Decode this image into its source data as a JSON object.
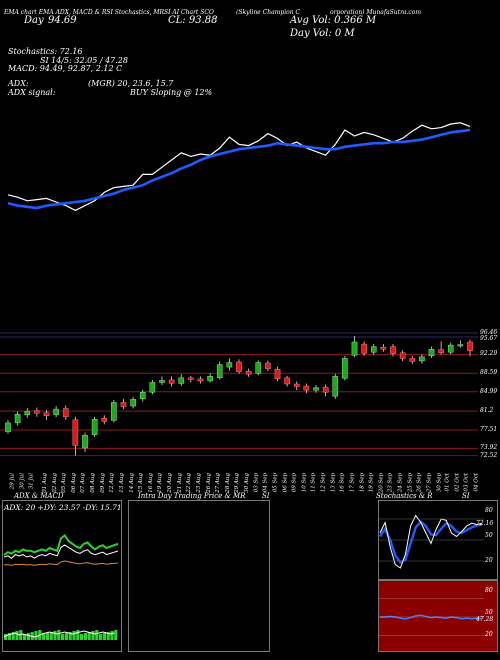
{
  "header": {
    "line1_left": "(Skyline Champion C",
    "line1_right": "orporation) MunafaSutra.com",
    "source_labels": [
      "EMA chart",
      "EMA",
      "ADX, MACD & RSI",
      "Stochastics, MRSI",
      "AI Chart SCO"
    ],
    "price_snippet": "CL: 93.88",
    "day_label": "Day",
    "day_value": "94.69",
    "avg_vol": "Avg Vol: 0.366  M",
    "day_vol": "Day Vol: 0  M",
    "stochastics": "Stochastics: 72.16",
    "si": "SI 14/5: 32.05 / 47.28",
    "macd": "MACD: 94.49, 92.87, 2.12  C",
    "adx_label": "ADX:",
    "mrsi": "(MGR) 20, 23.6, 15.7",
    "adx_signal": "ADX  signal:",
    "buy_signal": "BUY Sloping @ 12%"
  },
  "price_levels": [
    "96.46",
    "95.67",
    "92.29",
    "88.59",
    "84.99",
    "81.2",
    "77.51",
    "73.92",
    "72.52"
  ],
  "date_labels": [
    "29 Jul",
    "30 Jul",
    "31 Jul",
    "01 Aug",
    "02 Aug",
    "05 Aug",
    "06 Aug",
    "07 Aug",
    "08 Aug",
    "09 Aug",
    "12 Aug",
    "13 Aug",
    "14 Aug",
    "15 Aug",
    "16 Aug",
    "19 Aug",
    "20 Aug",
    "21 Aug",
    "22 Aug",
    "23 Aug",
    "26 Aug",
    "27 Aug",
    "28 Aug",
    "29 Aug",
    "30 Aug",
    "03 Sep",
    "04 Sep",
    "05 Sep",
    "06 Sep",
    "09 Sep",
    "10 Sep",
    "11 Sep",
    "12 Sep",
    "13 Sep",
    "16 Sep",
    "17 Sep",
    "18 Sep",
    "19 Sep",
    "20 Sep",
    "23 Sep",
    "24 Sep",
    "25 Sep",
    "26 Sep",
    "27 Sep",
    "30 Sep",
    "01 Oct",
    "02 Oct",
    "03 Oct",
    "04 Oct"
  ],
  "panels": {
    "adx_title": "ADX: 20  +DY: 23.57  -DY: 15.71",
    "adx_caption": "ADX  & MACD",
    "intraday_caption": "Intra Day Trading Price  & MR",
    "si_caption": "SI",
    "stoch_caption": "Stochastics & R",
    "stoch_caption2": "SI",
    "stoch_levels": [
      "80",
      "50",
      "20"
    ],
    "mrsi_levels": [
      "80",
      "50",
      "20"
    ],
    "stoch_value": "72.16",
    "mrsi_value": "47.28"
  },
  "colors": {
    "ema_fast": "#ffffff",
    "ema_slow": "#1f5cff",
    "up_candle": "#1fa81f",
    "down_candle": "#e01818",
    "level_red": "#8b1a1a",
    "level_blue": "#2a2a66"
  },
  "chart_data": {
    "type": "line",
    "title": "Skyline Champion Corporation",
    "x": [
      "29 Jul",
      "30 Jul",
      "31 Jul",
      "01 Aug",
      "02 Aug",
      "05 Aug",
      "06 Aug",
      "07 Aug",
      "08 Aug",
      "09 Aug",
      "12 Aug",
      "13 Aug",
      "14 Aug",
      "15 Aug",
      "16 Aug",
      "19 Aug",
      "20 Aug",
      "21 Aug",
      "22 Aug",
      "23 Aug",
      "26 Aug",
      "27 Aug",
      "28 Aug",
      "29 Aug",
      "30 Aug",
      "03 Sep",
      "04 Sep",
      "05 Sep",
      "06 Sep",
      "09 Sep",
      "10 Sep",
      "11 Sep",
      "12 Sep",
      "13 Sep",
      "16 Sep",
      "17 Sep",
      "18 Sep",
      "19 Sep",
      "20 Sep",
      "23 Sep",
      "24 Sep",
      "25 Sep",
      "26 Sep",
      "27 Sep",
      "30 Sep",
      "01 Oct",
      "02 Oct",
      "03 Oct",
      "04 Oct"
    ],
    "candles": [
      {
        "o": 77.2,
        "c": 78.9,
        "h": 79.5,
        "l": 76.8
      },
      {
        "o": 78.9,
        "c": 80.6,
        "h": 81.1,
        "l": 78.4
      },
      {
        "o": 80.5,
        "c": 81.2,
        "h": 81.8,
        "l": 79.9
      },
      {
        "o": 81.3,
        "c": 80.8,
        "h": 81.9,
        "l": 80.1
      },
      {
        "o": 80.9,
        "c": 80.3,
        "h": 81.4,
        "l": 79.5
      },
      {
        "o": 80.5,
        "c": 81.6,
        "h": 82.2,
        "l": 80.0
      },
      {
        "o": 81.7,
        "c": 80.1,
        "h": 82.3,
        "l": 79.5
      },
      {
        "o": 79.5,
        "c": 74.5,
        "h": 80.1,
        "l": 72.5
      },
      {
        "o": 74.0,
        "c": 76.5,
        "h": 77.0,
        "l": 73.2
      },
      {
        "o": 76.6,
        "c": 79.6,
        "h": 80.1,
        "l": 76.2
      },
      {
        "o": 79.8,
        "c": 79.2,
        "h": 80.4,
        "l": 78.6
      },
      {
        "o": 79.4,
        "c": 82.9,
        "h": 83.4,
        "l": 79.0
      },
      {
        "o": 82.9,
        "c": 82.1,
        "h": 83.6,
        "l": 81.6
      },
      {
        "o": 82.2,
        "c": 83.5,
        "h": 84.0,
        "l": 81.7
      },
      {
        "o": 83.6,
        "c": 84.9,
        "h": 85.4,
        "l": 83.1
      },
      {
        "o": 84.9,
        "c": 86.8,
        "h": 87.3,
        "l": 84.5
      },
      {
        "o": 86.8,
        "c": 87.2,
        "h": 88.0,
        "l": 86.3
      },
      {
        "o": 87.3,
        "c": 86.6,
        "h": 88.0,
        "l": 86.0
      },
      {
        "o": 86.6,
        "c": 87.7,
        "h": 88.4,
        "l": 86.1
      },
      {
        "o": 87.7,
        "c": 87.4,
        "h": 88.1,
        "l": 86.8
      },
      {
        "o": 87.5,
        "c": 87.1,
        "h": 88.0,
        "l": 86.6
      },
      {
        "o": 87.1,
        "c": 88.0,
        "h": 88.6,
        "l": 86.8
      },
      {
        "o": 87.7,
        "c": 90.3,
        "h": 90.9,
        "l": 87.4
      },
      {
        "o": 89.8,
        "c": 90.7,
        "h": 91.5,
        "l": 89.1
      },
      {
        "o": 90.8,
        "c": 88.9,
        "h": 91.3,
        "l": 88.5
      },
      {
        "o": 89.0,
        "c": 88.4,
        "h": 89.5,
        "l": 87.9
      },
      {
        "o": 88.6,
        "c": 90.7,
        "h": 91.1,
        "l": 88.2
      },
      {
        "o": 90.6,
        "c": 89.5,
        "h": 91.1,
        "l": 89.0
      },
      {
        "o": 89.4,
        "c": 87.5,
        "h": 89.9,
        "l": 87.0
      },
      {
        "o": 87.7,
        "c": 86.5,
        "h": 88.1,
        "l": 86.0
      },
      {
        "o": 86.5,
        "c": 86.0,
        "h": 87.0,
        "l": 85.3
      },
      {
        "o": 86.1,
        "c": 85.3,
        "h": 86.6,
        "l": 84.7
      },
      {
        "o": 85.3,
        "c": 85.8,
        "h": 86.3,
        "l": 84.8
      },
      {
        "o": 85.9,
        "c": 84.9,
        "h": 86.4,
        "l": 84.1
      },
      {
        "o": 84.1,
        "c": 88.0,
        "h": 88.5,
        "l": 83.6
      },
      {
        "o": 87.6,
        "c": 91.5,
        "h": 92.0,
        "l": 87.2
      },
      {
        "o": 92.1,
        "c": 94.7,
        "h": 95.9,
        "l": 91.7
      },
      {
        "o": 94.3,
        "c": 92.5,
        "h": 94.8,
        "l": 92.0
      },
      {
        "o": 92.7,
        "c": 93.8,
        "h": 94.3,
        "l": 92.2
      },
      {
        "o": 93.7,
        "c": 93.3,
        "h": 94.3,
        "l": 92.8
      },
      {
        "o": 93.8,
        "c": 92.4,
        "h": 94.3,
        "l": 91.9
      },
      {
        "o": 92.6,
        "c": 91.5,
        "h": 93.1,
        "l": 91.0
      },
      {
        "o": 91.5,
        "c": 90.9,
        "h": 92.0,
        "l": 90.4
      },
      {
        "o": 91.0,
        "c": 91.8,
        "h": 92.3,
        "l": 90.5
      },
      {
        "o": 92.0,
        "c": 93.3,
        "h": 93.8,
        "l": 91.6
      },
      {
        "o": 93.2,
        "c": 92.6,
        "h": 94.8,
        "l": 92.2
      },
      {
        "o": 92.7,
        "c": 94.1,
        "h": 94.6,
        "l": 92.3
      },
      {
        "o": 94.2,
        "c": 94.2,
        "h": 95.0,
        "l": 93.6
      },
      {
        "o": 94.7,
        "c": 93.0,
        "h": 95.2,
        "l": 91.9
      }
    ],
    "series": [
      {
        "values": [
          92.1,
          91.9,
          91.6,
          91.7,
          91.8,
          91.5,
          91.2,
          90.8,
          91.2,
          91.6,
          92.3,
          92.7,
          92.8,
          92.9,
          93.8,
          93.8,
          94.4,
          95.0,
          95.6,
          95.3,
          95.5,
          95.4,
          96.0,
          96.9,
          96.3,
          96.2,
          96.6,
          97.2,
          96.8,
          96.2,
          96.5,
          96.0,
          95.7,
          95.4,
          96.3,
          97.5,
          97.0,
          97.3,
          97.1,
          96.8,
          96.5,
          96.8,
          97.4,
          97.9,
          97.6,
          97.7,
          98.0,
          98.1,
          97.8
        ]
      },
      {
        "values": [
          91.4,
          91.2,
          91.1,
          91.0,
          91.2,
          91.3,
          91.4,
          91.5,
          91.6,
          91.8,
          92.0,
          92.2,
          92.5,
          92.7,
          92.9,
          93.3,
          93.6,
          93.9,
          94.3,
          94.6,
          95.0,
          95.3,
          95.5,
          95.7,
          95.9,
          96.0,
          96.1,
          96.2,
          96.4,
          96.3,
          96.2,
          96.1,
          96.0,
          95.9,
          95.9,
          96.1,
          96.2,
          96.3,
          96.4,
          96.4,
          96.5,
          96.5,
          96.6,
          96.7,
          96.9,
          97.1,
          97.3,
          97.4,
          97.5
        ]
      }
    ]
  }
}
